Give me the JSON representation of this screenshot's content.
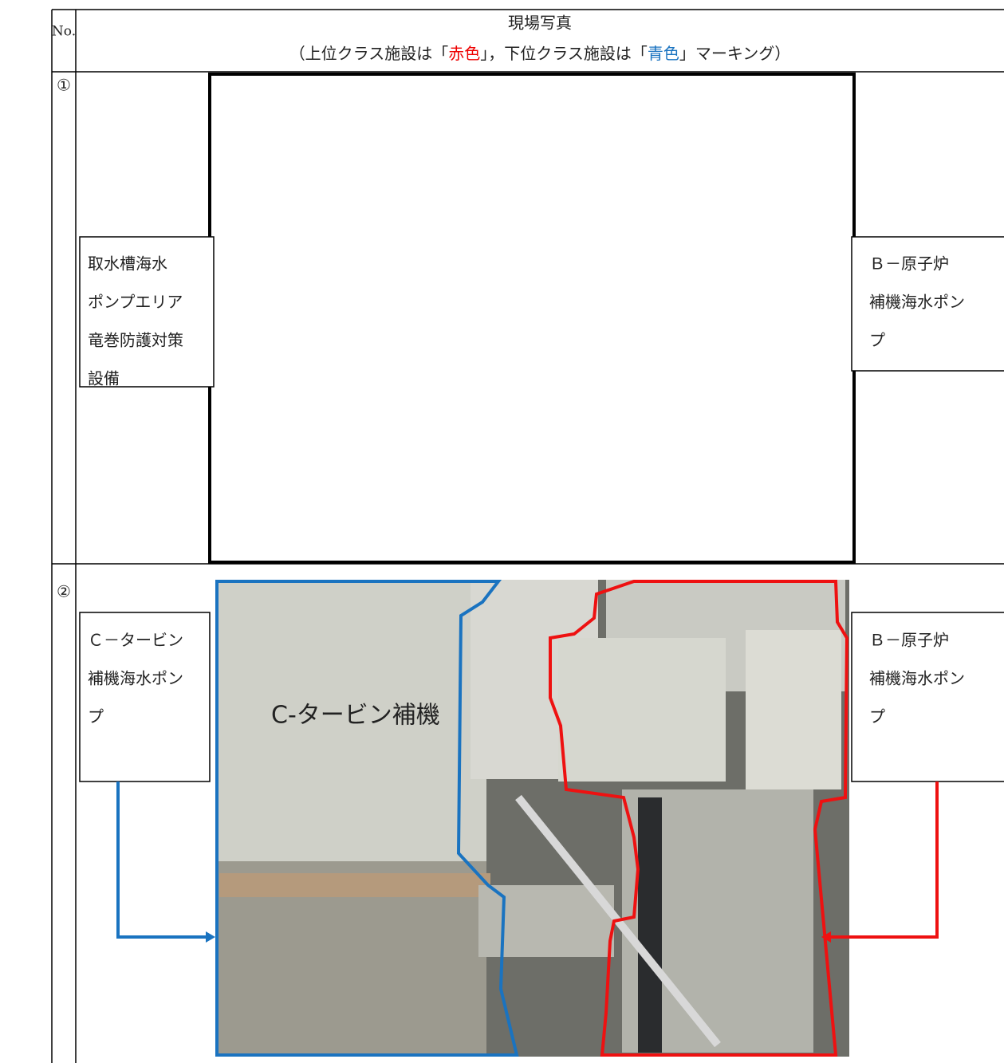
{
  "header": {
    "no": "No.",
    "title": "現場写真",
    "legend_parts": [
      "（上位クラス施設は「",
      "赤色",
      "」，下位クラス施設は「",
      "青色",
      "」マーキング）"
    ]
  },
  "rows": [
    {
      "no": "①",
      "left_label": [
        "取水槽海水",
        "ポンプエリア",
        "竜巻防護対策",
        "設備"
      ],
      "right_label": [
        "Ｂ－原子炉",
        "補機海水ポン",
        "プ"
      ]
    },
    {
      "no": "②",
      "left_label": [
        "Ｃ－タービン",
        "補機海水ポン",
        "プ"
      ],
      "right_label": [
        "Ｂ－原子炉",
        "補機海水ポン",
        "プ"
      ],
      "photo_text": "C-タービン補機"
    }
  ]
}
